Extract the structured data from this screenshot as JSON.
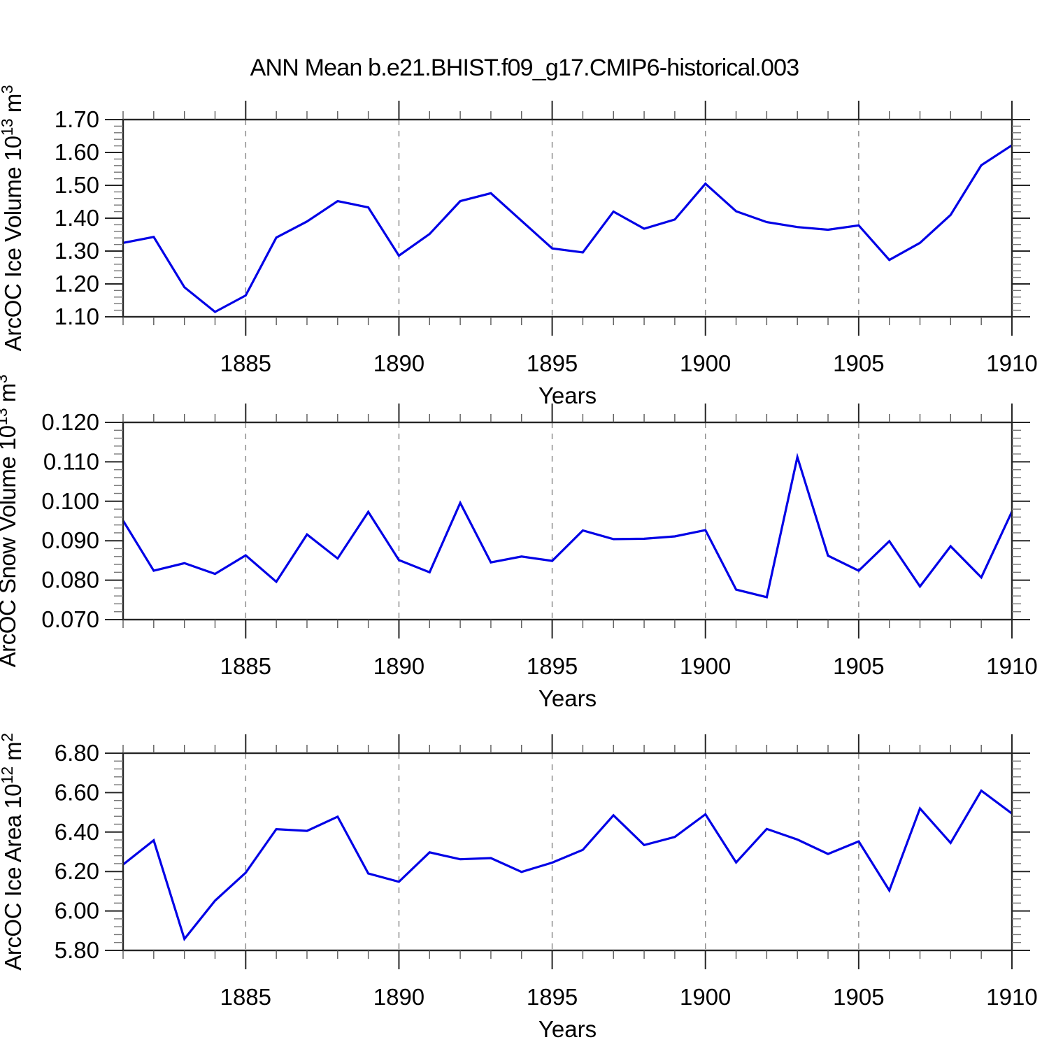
{
  "title": "ANN Mean b.e21.BHIST.f09_g17.CMIP6-historical.003",
  "colors": {
    "line": "#0000e6",
    "grid": "#8f8f8f",
    "axis": "#262626",
    "text": "#000000"
  },
  "x_axis": {
    "label": "Years",
    "range": [
      1881,
      1910
    ],
    "major_ticks": [
      1885,
      1890,
      1895,
      1900,
      1905,
      1910
    ],
    "tick_labels": [
      "1885",
      "1890",
      "1895",
      "1900",
      "1905",
      "1910"
    ],
    "grid_years": [
      1885,
      1890,
      1895,
      1900,
      1905
    ]
  },
  "chart_data": [
    {
      "type": "line",
      "name": "ice-volume",
      "ylabel": "ArcOC Ice Volume 10^13 m^3",
      "ylabel_parts": [
        [
          "ArcOC Ice Volume 10",
          false
        ],
        [
          "13",
          true
        ],
        [
          " m",
          false
        ],
        [
          "3",
          true
        ]
      ],
      "xlabel": "Years",
      "ylim": [
        1.1,
        1.7
      ],
      "ytick_step": 0.1,
      "yminor_step": 0.02,
      "ydecimals": 2,
      "grid": "vertical-dashed",
      "legend": "none",
      "x": [
        1881,
        1882,
        1883,
        1884,
        1885,
        1886,
        1887,
        1888,
        1889,
        1890,
        1891,
        1892,
        1893,
        1894,
        1895,
        1896,
        1897,
        1898,
        1899,
        1900,
        1901,
        1902,
        1903,
        1904,
        1905,
        1906,
        1907,
        1908,
        1909,
        1910
      ],
      "values": [
        1.325,
        1.343,
        1.19,
        1.115,
        1.165,
        1.341,
        1.39,
        1.452,
        1.433,
        1.286,
        1.352,
        1.452,
        1.476,
        1.392,
        1.308,
        1.296,
        1.42,
        1.368,
        1.396,
        1.505,
        1.421,
        1.388,
        1.373,
        1.365,
        1.378,
        1.273,
        1.325,
        1.41,
        1.561,
        1.622
      ]
    },
    {
      "type": "line",
      "name": "snow-volume",
      "ylabel": "ArcOC Snow Volume 10^13 m^3",
      "ylabel_parts": [
        [
          "ArcOC Snow Volume 10",
          false
        ],
        [
          "13",
          true
        ],
        [
          " m",
          false
        ],
        [
          "3",
          true
        ]
      ],
      "xlabel": "Years",
      "ylim": [
        0.07,
        0.12
      ],
      "ytick_step": 0.01,
      "yminor_step": 0.002,
      "ydecimals": 3,
      "grid": "vertical-dashed",
      "legend": "none",
      "x": [
        1881,
        1882,
        1883,
        1884,
        1885,
        1886,
        1887,
        1888,
        1889,
        1890,
        1891,
        1892,
        1893,
        1894,
        1895,
        1896,
        1897,
        1898,
        1899,
        1900,
        1901,
        1902,
        1903,
        1904,
        1905,
        1906,
        1907,
        1908,
        1909,
        1910
      ],
      "values": [
        0.0951,
        0.0824,
        0.0843,
        0.0816,
        0.0863,
        0.0796,
        0.0916,
        0.0855,
        0.0973,
        0.0851,
        0.082,
        0.0996,
        0.0845,
        0.086,
        0.0849,
        0.0926,
        0.0904,
        0.0905,
        0.0911,
        0.0927,
        0.0776,
        0.0757,
        0.1112,
        0.0862,
        0.0824,
        0.0899,
        0.0784,
        0.0886,
        0.0807,
        0.0974
      ]
    },
    {
      "type": "line",
      "name": "ice-area",
      "ylabel": "ArcOC Ice Area 10^12 m^2",
      "ylabel_parts": [
        [
          "ArcOC Ice Area 10",
          false
        ],
        [
          "12",
          true
        ],
        [
          " m",
          false
        ],
        [
          "2",
          true
        ]
      ],
      "xlabel": "Years",
      "ylim": [
        5.8,
        6.8
      ],
      "ytick_step": 0.2,
      "yminor_step": 0.04,
      "ydecimals": 2,
      "grid": "vertical-dashed",
      "legend": "none",
      "x": [
        1881,
        1882,
        1883,
        1884,
        1885,
        1886,
        1887,
        1888,
        1889,
        1890,
        1891,
        1892,
        1893,
        1894,
        1895,
        1896,
        1897,
        1898,
        1899,
        1900,
        1901,
        1902,
        1903,
        1904,
        1905,
        1906,
        1907,
        1908,
        1909,
        1910
      ],
      "values": [
        6.235,
        6.358,
        5.858,
        6.052,
        6.194,
        6.415,
        6.406,
        6.478,
        6.19,
        6.148,
        6.297,
        6.262,
        6.268,
        6.198,
        6.245,
        6.31,
        6.485,
        6.334,
        6.375,
        6.49,
        6.246,
        6.416,
        6.362,
        6.289,
        6.353,
        6.104,
        6.52,
        6.345,
        6.61,
        6.494
      ]
    }
  ]
}
